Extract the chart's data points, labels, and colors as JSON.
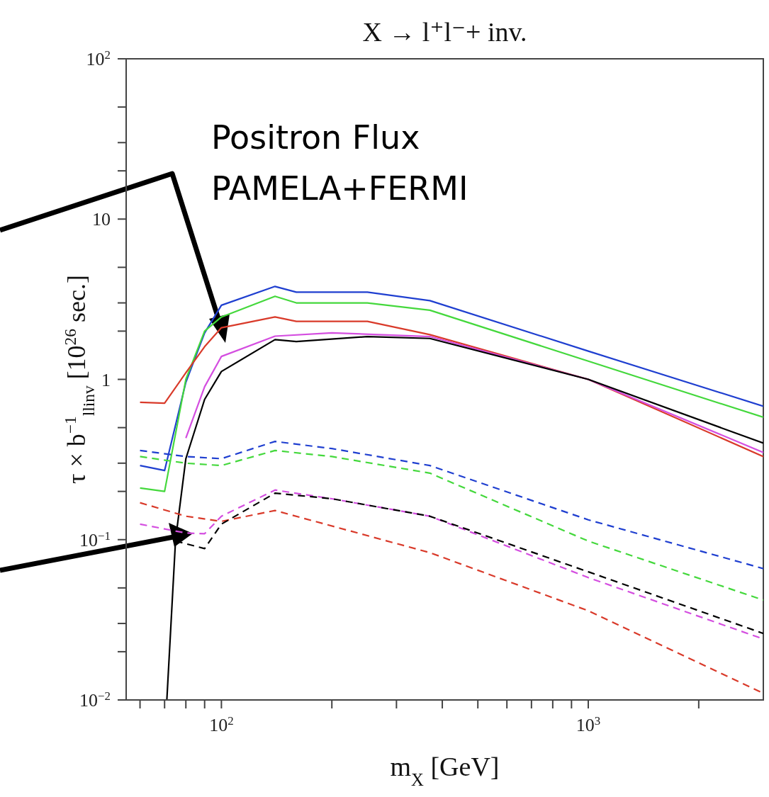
{
  "chart_data": {
    "type": "line",
    "title": "X → l⁺l⁻+ inv.",
    "xlabel": "m$_{X}$ [GeV]",
    "ylabel": "τ × b$^{−1}$$_{llinv}$ [10$^{26}$ sec.]",
    "annotations": [
      "Positron Flux\nPAMELA+FERMI"
    ],
    "log": "xy",
    "xlim": [
      55,
      3000
    ],
    "ylim": [
      0.01,
      100
    ],
    "xticks": [
      {
        "value": 60,
        "label": null
      },
      {
        "value": 70,
        "label": null
      },
      {
        "value": 80,
        "label": null
      },
      {
        "value": 90,
        "label": null
      },
      {
        "value": 100,
        "label": "10$^{2}$"
      },
      {
        "value": 200,
        "label": null
      },
      {
        "value": 300,
        "label": null
      },
      {
        "value": 400,
        "label": null
      },
      {
        "value": 500,
        "label": null
      },
      {
        "value": 600,
        "label": null
      },
      {
        "value": 700,
        "label": null
      },
      {
        "value": 800,
        "label": null
      },
      {
        "value": 900,
        "label": null
      },
      {
        "value": 1000,
        "label": "10$^{3}$"
      },
      {
        "value": 2000,
        "label": null
      }
    ],
    "yticks": [
      {
        "value": 0.01,
        "label": "10$^{−2}$"
      },
      {
        "value": 0.02,
        "label": null
      },
      {
        "value": 0.03,
        "label": null
      },
      {
        "value": 0.05,
        "label": null
      },
      {
        "value": 0.1,
        "label": "10$^{−1}$"
      },
      {
        "value": 0.2,
        "label": null
      },
      {
        "value": 0.3,
        "label": null
      },
      {
        "value": 0.5,
        "label": null
      },
      {
        "value": 1,
        "label": "1"
      },
      {
        "value": 2,
        "label": null
      },
      {
        "value": 3,
        "label": null
      },
      {
        "value": 5,
        "label": null
      },
      {
        "value": 10,
        "label": "10"
      },
      {
        "value": 20,
        "label": null
      },
      {
        "value": 30,
        "label": null
      },
      {
        "value": 50,
        "label": null
      },
      {
        "value": 100,
        "label": "10$^{2}$"
      }
    ],
    "marker": "none",
    "series": [
      {
        "color": "#1f3fd0",
        "line_style": "solid",
        "x": [
          60,
          70,
          80,
          90,
          100,
          140,
          160,
          250,
          370,
          1000,
          3000
        ],
        "values": [
          0.29,
          0.27,
          0.96,
          1.95,
          2.9,
          3.8,
          3.5,
          3.5,
          3.1,
          1.5,
          0.68
        ]
      },
      {
        "color": "#44d83c",
        "line_style": "solid",
        "x": [
          60,
          70,
          80,
          90,
          100,
          140,
          160,
          250,
          370,
          1000,
          3000
        ],
        "values": [
          0.21,
          0.2,
          1.0,
          2.0,
          2.45,
          3.3,
          3.0,
          3.0,
          2.7,
          1.3,
          0.58
        ]
      },
      {
        "color": "#d93a2a",
        "line_style": "solid",
        "x": [
          60,
          70,
          80,
          90,
          100,
          140,
          160,
          250,
          370,
          1000,
          3000
        ],
        "values": [
          0.72,
          0.71,
          1.1,
          1.6,
          2.1,
          2.45,
          2.3,
          2.3,
          1.9,
          1.0,
          0.33
        ]
      },
      {
        "color": "#d44ee0",
        "line_style": "solid",
        "x": [
          80,
          90,
          100,
          140,
          200,
          370,
          1000,
          3000
        ],
        "values": [
          0.43,
          0.9,
          1.39,
          1.86,
          1.95,
          1.85,
          1.0,
          0.35
        ]
      },
      {
        "color": "#000000",
        "line_style": "solid",
        "x": [
          71,
          75,
          80,
          90,
          100,
          140,
          160,
          250,
          370,
          1000,
          3000
        ],
        "values": [
          0.01,
          0.1,
          0.32,
          0.75,
          1.12,
          1.77,
          1.72,
          1.85,
          1.8,
          1.0,
          0.4
        ]
      },
      {
        "color": "#1f3fd0",
        "line_style": "dashed",
        "x": [
          60,
          80,
          100,
          140,
          200,
          370,
          1000,
          3000
        ],
        "values": [
          0.36,
          0.33,
          0.32,
          0.41,
          0.37,
          0.29,
          0.133,
          0.066
        ]
      },
      {
        "color": "#44d83c",
        "line_style": "dashed",
        "x": [
          60,
          80,
          100,
          140,
          200,
          370,
          1000,
          3000
        ],
        "values": [
          0.33,
          0.3,
          0.29,
          0.36,
          0.33,
          0.26,
          0.098,
          0.042
        ]
      },
      {
        "color": "#d93a2a",
        "line_style": "dashed",
        "x": [
          60,
          80,
          100,
          140,
          370,
          1000,
          3000
        ],
        "values": [
          0.17,
          0.14,
          0.13,
          0.152,
          0.083,
          0.036,
          0.011
        ]
      },
      {
        "color": "#d44ee0",
        "line_style": "dashed",
        "x": [
          60,
          80,
          90,
          100,
          140,
          200,
          370,
          1000,
          3000
        ],
        "values": [
          0.125,
          0.11,
          0.109,
          0.14,
          0.204,
          0.18,
          0.14,
          0.058,
          0.024
        ]
      },
      {
        "color": "#000000",
        "line_style": "dashed",
        "x": [
          75,
          90,
          100,
          140,
          200,
          370,
          1000,
          3000
        ],
        "values": [
          0.098,
          0.088,
          0.125,
          0.195,
          0.18,
          0.14,
          0.063,
          0.026
        ]
      }
    ]
  }
}
